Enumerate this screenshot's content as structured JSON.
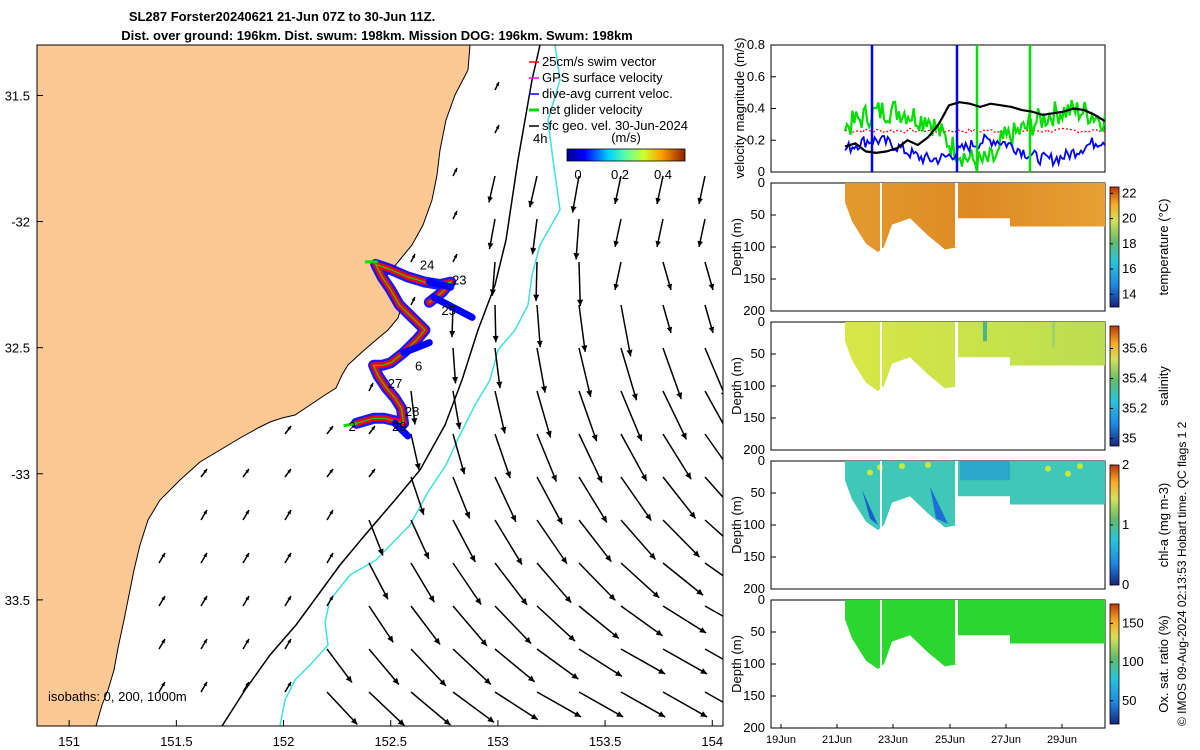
{
  "title_line1": "SL287 Forster20240621 21-Jun 07Z to 30-Jun 11Z.",
  "title_line2": "Dist. over ground: 196km. Dist. swum: 198km. Mission DOG: 196km. Swum: 198km",
  "copyright": "© IMOS 09-Aug-2024 02:13:53 Hobart time. QC flags 1  2",
  "colors": {
    "land": "#FCC995",
    "ocean": "#FFFFFF",
    "track_red": "#FF0000",
    "track_blue": "#0000FF",
    "green": "#00DD00",
    "cyan": "#40E0E0",
    "black": "#000000",
    "magenta": "#FF00FF"
  },
  "chart_data": [
    {
      "id": "map",
      "type": "scatter",
      "xlim": [
        150.85,
        154.05
      ],
      "ylim": [
        -34.0,
        -31.3
      ],
      "x_ticks": [
        151,
        151.5,
        152,
        152.5,
        153,
        153.5,
        154
      ],
      "x_tick_labels": [
        "151",
        "151.5",
        "152",
        "152.5",
        "153",
        "153.5",
        "154"
      ],
      "y_ticks": [
        -31.5,
        -32,
        -32.5,
        -33,
        -33.5
      ],
      "y_tick_labels": [
        "31.5",
        "-32",
        "32.5",
        "-33",
        "33.5"
      ],
      "legend": {
        "entries": [
          {
            "label": "25cm/s swim vector",
            "color": "#FF0000"
          },
          {
            "label": "GPS surface velocity",
            "color": "#FF00FF"
          },
          {
            "label": "dive-avg current veloc.",
            "color": "#0000FF"
          },
          {
            "label": "net glider velocity",
            "color": "#00DD00"
          },
          {
            "label": "sfc geo. vel. 30-Jun-2024",
            "color": "#000000"
          }
        ],
        "placement": "top-right"
      },
      "colorbar": {
        "label": "(m/s)",
        "ticks": [
          "0",
          "0.2",
          "0.4"
        ],
        "range": [
          0,
          0.5
        ]
      },
      "isobaths_label": "isobaths: 0, 200, 1000m",
      "label_4h": "4h",
      "day_labels": [
        {
          "text": "24",
          "lon": 152.67,
          "lat": -32.19
        },
        {
          "text": "23",
          "lon": 152.82,
          "lat": -32.25
        },
        {
          "text": "25",
          "lon": 152.77,
          "lat": -32.37
        },
        {
          "text": "6",
          "lon": 152.63,
          "lat": -32.59
        },
        {
          "text": "27",
          "lon": 152.52,
          "lat": -32.66
        },
        {
          "text": "28",
          "lon": 152.6,
          "lat": -32.77
        },
        {
          "text": "2",
          "lon": 152.32,
          "lat": -32.83
        },
        {
          "text": "29",
          "lon": 152.54,
          "lat": -32.83
        }
      ]
    },
    {
      "id": "velocity",
      "type": "line",
      "ylabel": "velocity magnitude (m/s)",
      "ylim": [
        0,
        0.8
      ],
      "y_ticks": [
        "0",
        "0.2",
        "0.4",
        "0.6",
        "0.8"
      ],
      "series_colors": [
        "#0000FF",
        "#00DD00",
        "#000000",
        "#FF0000"
      ],
      "black_values": [
        0.16,
        0.18,
        0.13,
        0.12,
        0.13,
        0.15,
        0.2,
        0.17,
        0.22,
        0.3,
        0.42,
        0.44,
        0.43,
        0.41,
        0.43,
        0.42,
        0.41,
        0.39,
        0.38,
        0.36,
        0.37,
        0.38,
        0.4,
        0.39,
        0.36,
        0.32
      ]
    },
    {
      "id": "temperature",
      "type": "heatmap",
      "ylabel": "Depth (m)",
      "clabel": "temperature (°C)",
      "ylim": [
        200,
        0
      ],
      "y_ticks": [
        "0",
        "50",
        "100",
        "150",
        "200"
      ],
      "c_ticks": [
        "14",
        "16",
        "18",
        "20",
        "22"
      ],
      "crange": [
        13,
        22.5
      ]
    },
    {
      "id": "salinity",
      "type": "heatmap",
      "ylabel": "Depth (m)",
      "clabel": "salinity",
      "ylim": [
        200,
        0
      ],
      "y_ticks": [
        "0",
        "50",
        "100",
        "150",
        "200"
      ],
      "c_ticks": [
        "35",
        "35.2",
        "35.4",
        "35.6"
      ],
      "crange": [
        34.95,
        35.75
      ]
    },
    {
      "id": "chla",
      "type": "heatmap",
      "ylabel": "Depth (m)",
      "clabel": "chl-a (mg m-3)",
      "ylim": [
        200,
        0
      ],
      "y_ticks": [
        "0",
        "50",
        "100",
        "150",
        "200"
      ],
      "c_ticks": [
        "0",
        "1",
        "2"
      ],
      "crange": [
        0,
        2
      ]
    },
    {
      "id": "oxygen",
      "type": "heatmap",
      "ylabel": "Depth (m)",
      "clabel": "Ox. sat. ratio (%)",
      "ylim": [
        200,
        0
      ],
      "y_ticks": [
        "0",
        "50",
        "100",
        "150",
        "200"
      ],
      "c_ticks": [
        "50",
        "100",
        "150"
      ],
      "crange": [
        20,
        175
      ],
      "x_tick_labels": [
        "19Jun",
        "21Jun",
        "23Jun",
        "25Jun",
        "27Jun",
        "29Jun"
      ]
    }
  ]
}
